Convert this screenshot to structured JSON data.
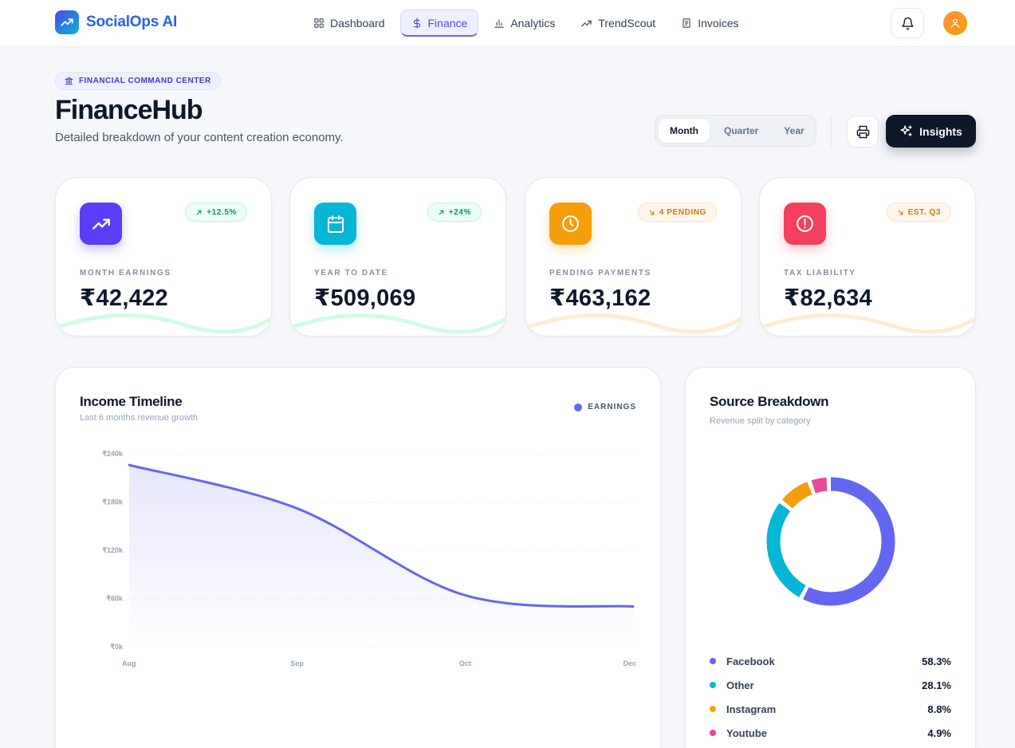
{
  "app": {
    "name": "SocialOps AI"
  },
  "nav": {
    "items": [
      {
        "label": "Dashboard",
        "icon": "grid-icon",
        "active": false
      },
      {
        "label": "Finance",
        "icon": "dollar-icon",
        "active": true
      },
      {
        "label": "Analytics",
        "icon": "bar-chart-icon",
        "active": false
      },
      {
        "label": "TrendScout",
        "icon": "trend-icon",
        "active": false
      },
      {
        "label": "Invoices",
        "icon": "document-icon",
        "active": false
      }
    ]
  },
  "header": {
    "pill": "FINANCIAL COMMAND CENTER",
    "title": "FinanceHub",
    "subtitle": "Detailed breakdown of your content creation economy."
  },
  "period": {
    "options": [
      "Month",
      "Quarter",
      "Year"
    ],
    "selected": "Month"
  },
  "actions": {
    "insights_label": "Insights"
  },
  "cards": [
    {
      "label": "MONTH EARNINGS",
      "value": "₹42,422",
      "badge": "+12.5%",
      "badge_tone": "green",
      "icon": "trending-up-icon",
      "color": "#5b3df5"
    },
    {
      "label": "YEAR TO DATE",
      "value": "₹509,069",
      "badge": "+24%",
      "badge_tone": "green",
      "icon": "calendar-icon",
      "color": "#06b6d4"
    },
    {
      "label": "PENDING PAYMENTS",
      "value": "₹463,162",
      "badge": "4 PENDING",
      "badge_tone": "orange",
      "icon": "clock-icon",
      "color": "#f59e0b"
    },
    {
      "label": "TAX LIABILITY",
      "value": "₹82,634",
      "badge": "EST. Q3",
      "badge_tone": "orange",
      "icon": "alert-circle-icon",
      "color": "#f43f5e"
    }
  ],
  "income_timeline": {
    "title": "Income Timeline",
    "subtitle": "Last 6 months revenue growth",
    "legend": "EARNINGS"
  },
  "chart_data": {
    "type": "area",
    "x_ticks": [
      "Aug",
      "Sep",
      "Oct",
      "Dec"
    ],
    "x_positions": [
      0,
      1,
      2,
      3
    ],
    "y_ticks": [
      "₹0k",
      "₹60k",
      "₹120k",
      "₹180k",
      "₹240k"
    ],
    "ylim": [
      0,
      240
    ],
    "series": [
      {
        "name": "EARNINGS",
        "x": [
          0,
          1,
          2,
          3
        ],
        "values": [
          226,
          172,
          64,
          50
        ],
        "color": "#6366f1"
      }
    ],
    "grid": true
  },
  "source_breakdown": {
    "title": "Source Breakdown",
    "subtitle": "Revenue split by category",
    "items": [
      {
        "name": "Facebook",
        "percent": 58.3,
        "label": "58.3%",
        "color": "#6366f1"
      },
      {
        "name": "Other",
        "percent": 28.1,
        "label": "28.1%",
        "color": "#06b6d4"
      },
      {
        "name": "Instagram",
        "percent": 8.8,
        "label": "8.8%",
        "color": "#f59e0b"
      },
      {
        "name": "Youtube",
        "percent": 4.9,
        "label": "4.9%",
        "color": "#ec4899"
      }
    ]
  }
}
